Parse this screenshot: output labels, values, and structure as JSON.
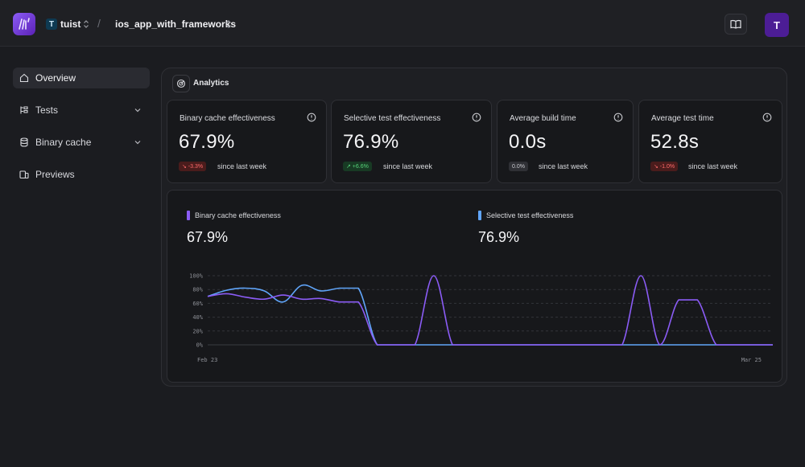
{
  "header": {
    "org_initial": "T",
    "org_name": "tuist",
    "separator": "/",
    "project_name": "ios_app_with_frameworks",
    "avatar_initial": "T"
  },
  "sidebar": {
    "items": [
      {
        "label": "Overview",
        "icon": "home-icon",
        "active": true
      },
      {
        "label": "Tests",
        "icon": "tests-icon",
        "expandable": true
      },
      {
        "label": "Binary cache",
        "icon": "database-icon",
        "expandable": true
      },
      {
        "label": "Previews",
        "icon": "devices-icon"
      }
    ]
  },
  "analytics": {
    "title": "Analytics",
    "cards": [
      {
        "title": "Binary cache effectiveness",
        "value": "67.9%",
        "delta": "↘ -3.3%",
        "trend": "negative",
        "since": "since last week"
      },
      {
        "title": "Selective test effectiveness",
        "value": "76.9%",
        "delta": "↗ +6.6%",
        "trend": "positive",
        "since": "since last week"
      },
      {
        "title": "Average build time",
        "value": "0.0s",
        "delta": "0.0%",
        "trend": "neutral",
        "since": "since last week"
      },
      {
        "title": "Average test time",
        "value": "52.8s",
        "delta": "↘ -1.0%",
        "trend": "negative",
        "since": "since last week"
      }
    ]
  },
  "colors": {
    "accent_purple": "#8b5cf6",
    "accent_blue": "#60a5fa",
    "negative": "#ff6b6b",
    "positive": "#57d27a"
  },
  "chart_data": {
    "type": "line",
    "x_start_label": "Feb 23",
    "x_end_label": "Mar 25",
    "x_count": 31,
    "y_ticks": [
      "100%",
      "80%",
      "60%",
      "40%",
      "20%",
      "0%"
    ],
    "ylim": [
      0,
      100
    ],
    "grid": true,
    "legend_position": "top",
    "series": [
      {
        "name": "Binary cache effectiveness",
        "display_value": "67.9%",
        "color": "#8b5cf6",
        "values": [
          70,
          74,
          69,
          66,
          72,
          66,
          67,
          62,
          62,
          0,
          0,
          0,
          100,
          0,
          0,
          0,
          0,
          0,
          0,
          0,
          0,
          0,
          0,
          100,
          0,
          65,
          65,
          0,
          0,
          0,
          0
        ]
      },
      {
        "name": "Selective test effectiveness",
        "display_value": "76.9%",
        "color": "#60a5fa",
        "values": [
          70,
          79,
          82,
          78,
          62,
          86,
          78,
          82,
          82,
          0,
          0,
          0,
          0,
          0,
          0,
          0,
          0,
          0,
          0,
          0,
          0,
          0,
          0,
          0,
          0,
          0,
          0,
          0,
          0,
          0,
          0
        ]
      }
    ]
  }
}
